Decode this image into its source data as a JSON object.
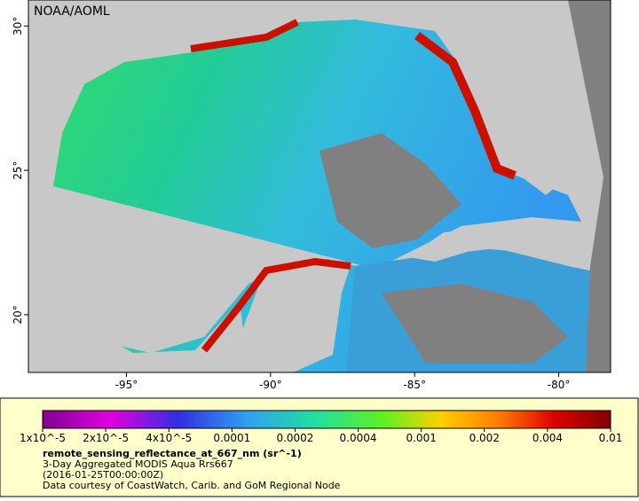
{
  "map": {
    "label": "NOAA/AOML",
    "xlim": [
      -98.4,
      -78.2
    ],
    "ylim": [
      18.0,
      30.9
    ],
    "xticks": [
      {
        "value": -95,
        "label": "-95°"
      },
      {
        "value": -90,
        "label": "-90°"
      },
      {
        "value": -85,
        "label": "-85°"
      },
      {
        "value": -80,
        "label": "-80°"
      }
    ],
    "yticks": [
      {
        "value": 20,
        "label": "20°"
      },
      {
        "value": 25,
        "label": "25°"
      },
      {
        "value": 30,
        "label": "30°"
      }
    ]
  },
  "colorbar": {
    "ticks": [
      {
        "value": 1e-05,
        "label": "1x10^-5"
      },
      {
        "value": 2e-05,
        "label": "2x10^-5"
      },
      {
        "value": 4e-05,
        "label": "4x10^-5"
      },
      {
        "value": 0.0001,
        "label": "0.0001"
      },
      {
        "value": 0.0002,
        "label": "0.0002"
      },
      {
        "value": 0.0004,
        "label": "0.0004"
      },
      {
        "value": 0.001,
        "label": "0.001"
      },
      {
        "value": 0.002,
        "label": "0.002"
      },
      {
        "value": 0.004,
        "label": "0.004"
      },
      {
        "value": 0.01,
        "label": "0.01"
      }
    ],
    "title": "remote_sensing_reflectance_at_667_nm (sr^-1)",
    "lines": [
      "3-Day Aggregated MODIS Aqua Rrs667",
      "(2016-01-25T00:00:00Z)",
      "Data courtesy of CoastWatch, Carib. and GoM Regional Node"
    ]
  }
}
